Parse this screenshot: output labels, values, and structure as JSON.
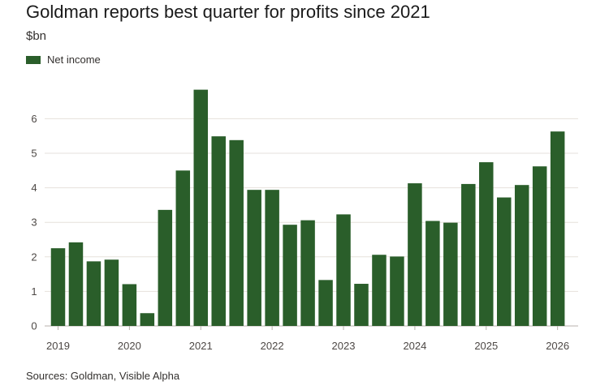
{
  "chart_data": {
    "type": "bar",
    "title": "Goldman reports best quarter for profits since 2021",
    "ylabel": "$bn",
    "legend": [
      "Net income"
    ],
    "legend_position": "top-left",
    "series_color": "#2a5e2a",
    "grid_color": "#e6e1dc",
    "ylim": [
      0,
      7
    ],
    "yticks": [
      0,
      1,
      2,
      3,
      4,
      5,
      6
    ],
    "xtick_labels": [
      "2019",
      "2020",
      "2021",
      "2022",
      "2023",
      "2024",
      "2025",
      "2026"
    ],
    "categories": [
      "2019 Q1",
      "2019 Q2",
      "2019 Q3",
      "2019 Q4",
      "2020 Q1",
      "2020 Q2",
      "2020 Q3",
      "2020 Q4",
      "2021 Q1",
      "2021 Q2",
      "2021 Q3",
      "2021 Q4",
      "2022 Q1",
      "2022 Q2",
      "2022 Q3",
      "2022 Q4",
      "2023 Q1",
      "2023 Q2",
      "2023 Q3",
      "2023 Q4",
      "2024 Q1",
      "2024 Q2",
      "2024 Q3",
      "2024 Q4",
      "2025 Q1",
      "2025 Q2",
      "2025 Q3",
      "2025 Q4",
      "2026 Q1"
    ],
    "values": [
      2.25,
      2.42,
      1.87,
      1.92,
      1.21,
      0.37,
      3.36,
      4.5,
      6.84,
      5.49,
      5.38,
      3.94,
      3.94,
      2.93,
      3.06,
      1.33,
      3.23,
      1.22,
      2.06,
      2.01,
      4.13,
      3.04,
      2.99,
      4.11,
      4.74,
      3.72,
      4.08,
      4.62,
      5.63
    ],
    "source": "Sources: Goldman, Visible Alpha"
  }
}
